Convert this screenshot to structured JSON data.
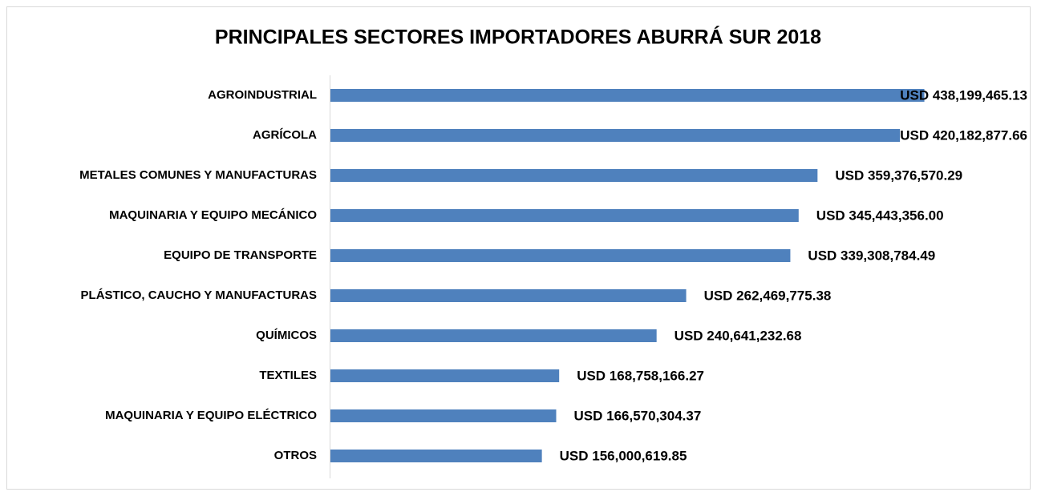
{
  "chart_data": {
    "type": "barh",
    "title": "PRINCIPALES SECTORES IMPORTADORES ABURRÁ SUR 2018",
    "categories": [
      "AGROINDUSTRIAL",
      "AGRÍCOLA",
      "METALES COMUNES Y MANUFACTURAS",
      "MAQUINARIA Y EQUIPO MECÁNICO",
      "EQUIPO DE TRANSPORTE",
      "PLÁSTICO, CAUCHO Y MANUFACTURAS",
      "QUÍMICOS",
      "TEXTILES",
      "MAQUINARIA Y EQUIPO ELÉCTRICO",
      "OTROS"
    ],
    "values": [
      438199465.13,
      420182877.66,
      359376570.29,
      345443356.0,
      339308784.49,
      262469775.38,
      240641232.68,
      168758166.27,
      166570304.37,
      156000619.85
    ],
    "value_labels": [
      "USD 438,199,465.13",
      "USD 420,182,877.66",
      "USD 359,376,570.29",
      "USD 345,443,356.00",
      "USD 339,308,784.49",
      "USD 262,469,775.38",
      "USD 240,641,232.68",
      "USD 168,758,166.27",
      "USD 166,570,304.37",
      "USD 156,000,619.85"
    ],
    "color": "#4f81bd",
    "xlim": [
      0,
      500000000
    ]
  }
}
